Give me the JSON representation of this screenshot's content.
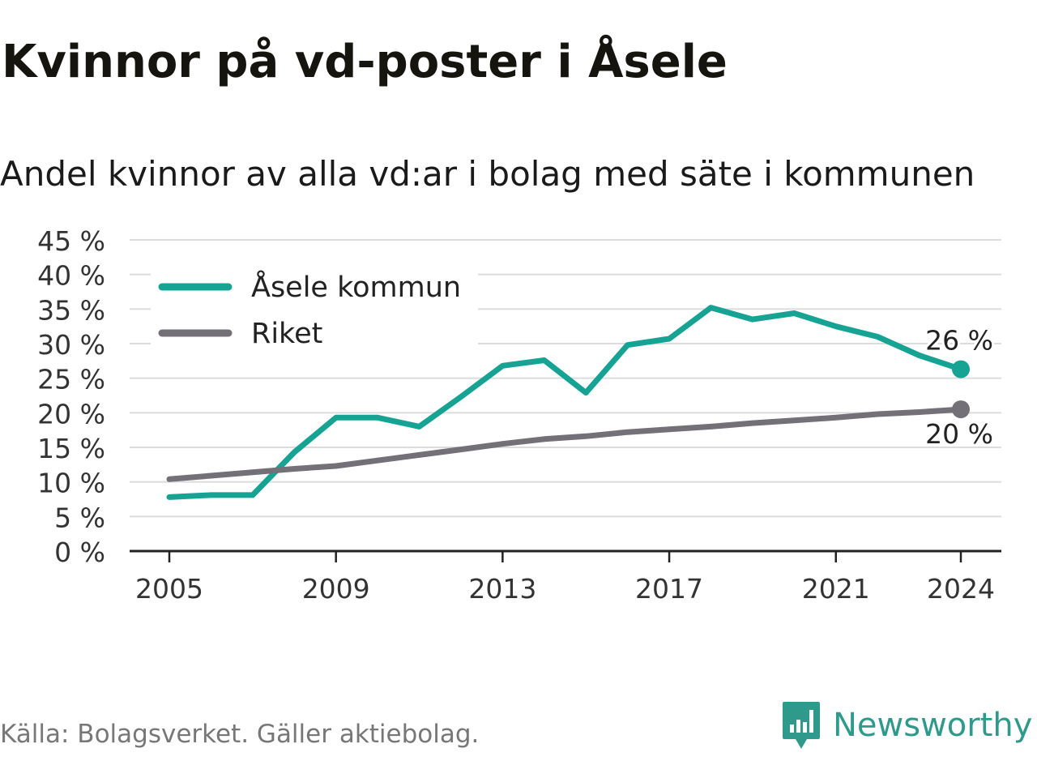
{
  "title": "Kvinnor på vd-poster i Åsele",
  "subtitle": "Andel kvinnor av alla vd:ar i bolag med säte i kommunen",
  "source": "Källa: Bolagsverket. Gäller aktiebolag.",
  "brand": {
    "name": "Newsworthy",
    "logo_icon": "newsworthy-bar-chart-icon",
    "color": "#2f9a8c"
  },
  "chart_data": {
    "type": "line",
    "x": [
      2005,
      2006,
      2007,
      2008,
      2009,
      2010,
      2011,
      2012,
      2013,
      2014,
      2015,
      2016,
      2017,
      2018,
      2019,
      2020,
      2021,
      2022,
      2023,
      2024
    ],
    "x_ticks": [
      "2005",
      "2009",
      "2013",
      "2017",
      "2021",
      "2024"
    ],
    "y_ticks": [
      "0 %",
      "5 %",
      "10 %",
      "15 %",
      "20 %",
      "25 %",
      "30 %",
      "35 %",
      "40 %",
      "45 %"
    ],
    "ylim": [
      0,
      45
    ],
    "grid": true,
    "legend_position": "top-left",
    "series": [
      {
        "name": "Åsele kommun",
        "color": "#17a394",
        "values": [
          7.8,
          8.1,
          8.1,
          14.3,
          19.3,
          19.3,
          18.0,
          22.3,
          26.8,
          27.6,
          22.9,
          29.8,
          30.7,
          35.2,
          33.5,
          34.4,
          32.5,
          31.0,
          28.3,
          26.3
        ],
        "end_label": "26 %"
      },
      {
        "name": "Riket",
        "color": "#737077",
        "values": [
          10.4,
          10.9,
          11.4,
          11.9,
          12.3,
          13.1,
          13.9,
          14.7,
          15.5,
          16.2,
          16.6,
          17.2,
          17.6,
          18.0,
          18.5,
          18.9,
          19.3,
          19.8,
          20.1,
          20.5
        ],
        "end_label": "20 %"
      }
    ]
  }
}
